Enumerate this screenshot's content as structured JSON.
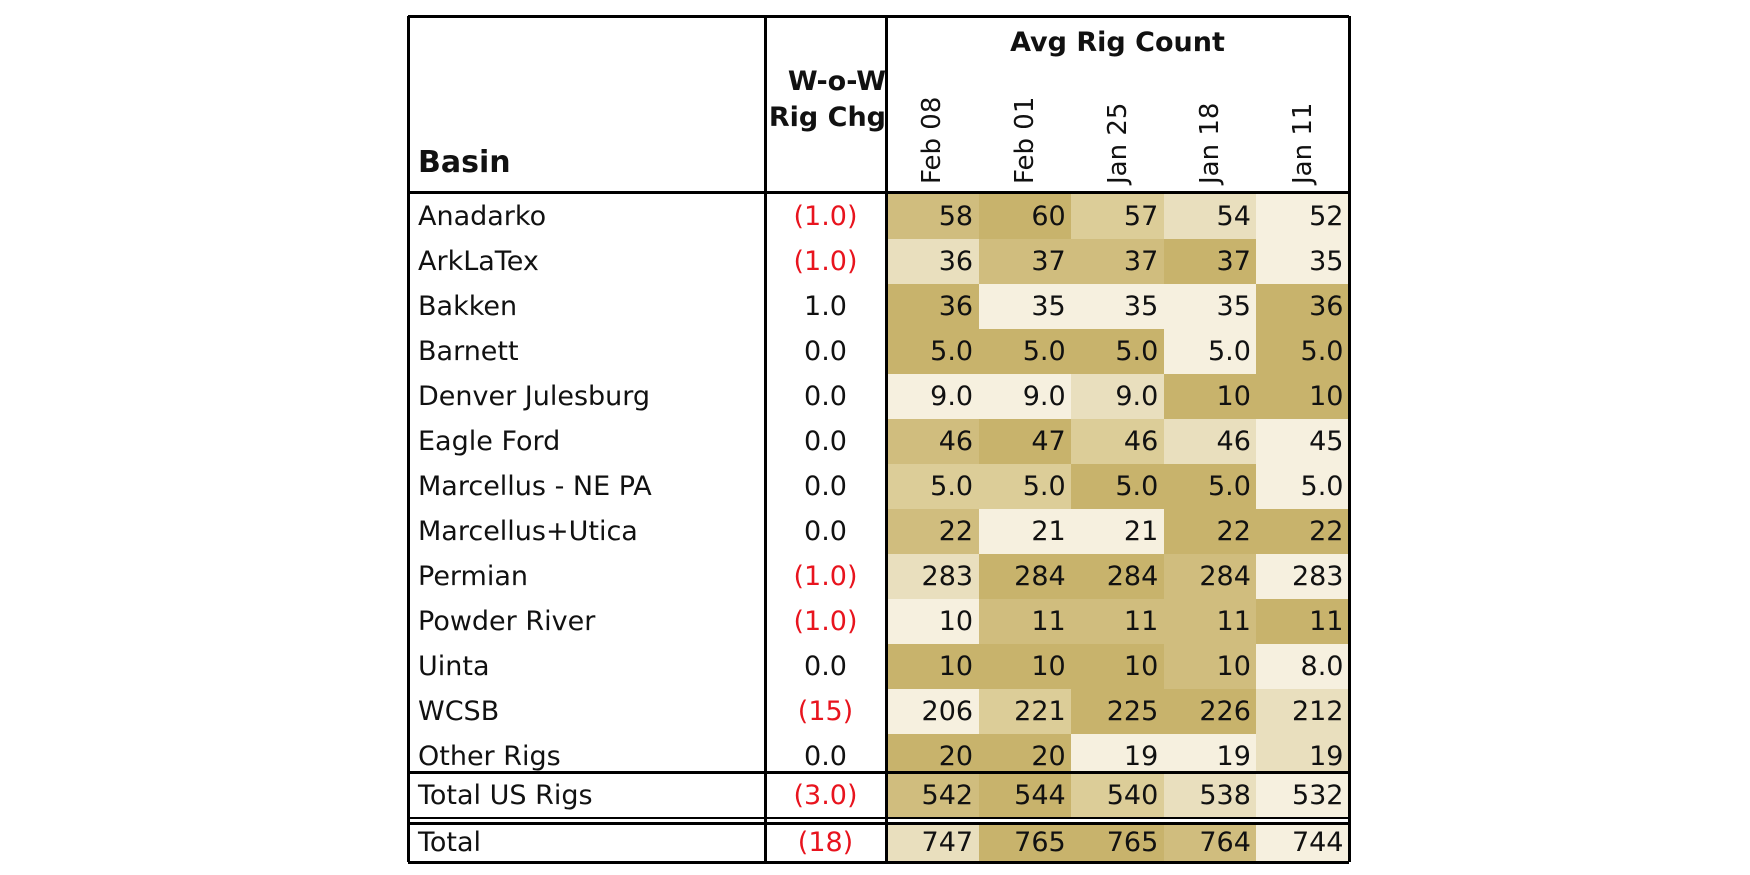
{
  "chart_data": {
    "type": "table",
    "title": "Avg Rig Count",
    "columns": {
      "basin": "Basin",
      "change": [
        "W-o-W",
        "Rig Chg"
      ],
      "dates": [
        "Feb 08",
        "Feb 01",
        "Jan 25",
        "Jan 18",
        "Jan 11"
      ]
    },
    "rows": [
      {
        "basin": "Anadarko",
        "change": "(1.0)",
        "negative": true,
        "values": [
          "58",
          "60",
          "57",
          "54",
          "52"
        ],
        "shades": [
          3,
          4,
          2,
          1,
          0
        ]
      },
      {
        "basin": "ArkLaTex",
        "change": "(1.0)",
        "negative": true,
        "values": [
          "36",
          "37",
          "37",
          "37",
          "35"
        ],
        "shades": [
          1,
          3,
          3,
          4,
          0
        ]
      },
      {
        "basin": "Bakken",
        "change": "1.0",
        "negative": false,
        "values": [
          "36",
          "35",
          "35",
          "35",
          "36"
        ],
        "shades": [
          4,
          0,
          0,
          0,
          4
        ]
      },
      {
        "basin": "Barnett",
        "change": "0.0",
        "negative": false,
        "values": [
          "5.0",
          "5.0",
          "5.0",
          "5.0",
          "5.0"
        ],
        "shades": [
          4,
          4,
          4,
          0,
          4
        ]
      },
      {
        "basin": "Denver Julesburg",
        "change": "0.0",
        "negative": false,
        "values": [
          "9.0",
          "9.0",
          "9.0",
          "10",
          "10"
        ],
        "shades": [
          0,
          0,
          1,
          4,
          4
        ]
      },
      {
        "basin": "Eagle Ford",
        "change": "0.0",
        "negative": false,
        "values": [
          "46",
          "47",
          "46",
          "46",
          "45"
        ],
        "shades": [
          3,
          4,
          2,
          1,
          0
        ]
      },
      {
        "basin": "Marcellus - NE PA",
        "change": "0.0",
        "negative": false,
        "values": [
          "5.0",
          "5.0",
          "5.0",
          "5.0",
          "5.0"
        ],
        "shades": [
          2,
          2,
          4,
          4,
          0
        ]
      },
      {
        "basin": "Marcellus+Utica",
        "change": "0.0",
        "negative": false,
        "values": [
          "22",
          "21",
          "21",
          "22",
          "22"
        ],
        "shades": [
          3,
          0,
          0,
          4,
          4
        ]
      },
      {
        "basin": "Permian",
        "change": "(1.0)",
        "negative": true,
        "values": [
          "283",
          "284",
          "284",
          "284",
          "283"
        ],
        "shades": [
          1,
          4,
          4,
          3,
          0
        ]
      },
      {
        "basin": "Powder River",
        "change": "(1.0)",
        "negative": true,
        "values": [
          "10",
          "11",
          "11",
          "11",
          "11"
        ],
        "shades": [
          0,
          3,
          3,
          3,
          4
        ]
      },
      {
        "basin": "Uinta",
        "change": "0.0",
        "negative": false,
        "values": [
          "10",
          "10",
          "10",
          "10",
          "8.0"
        ],
        "shades": [
          4,
          4,
          4,
          3,
          0
        ]
      },
      {
        "basin": "WCSB",
        "change": "(15)",
        "negative": true,
        "values": [
          "206",
          "221",
          "225",
          "226",
          "212"
        ],
        "shades": [
          0,
          2,
          4,
          4,
          1
        ]
      },
      {
        "basin": "Other Rigs",
        "change": "0.0",
        "negative": false,
        "values": [
          "20",
          "20",
          "19",
          "19",
          "19"
        ],
        "shades": [
          4,
          4,
          0,
          0,
          1
        ]
      }
    ],
    "subtotal": {
      "basin": "Total US Rigs",
      "change": "(3.0)",
      "negative": true,
      "values": [
        "542",
        "544",
        "540",
        "538",
        "532"
      ],
      "shades": [
        3,
        4,
        2,
        1,
        0
      ]
    },
    "total": {
      "basin": "Total",
      "change": "(18)",
      "negative": true,
      "values": [
        "747",
        "765",
        "765",
        "764",
        "744"
      ],
      "shades": [
        1,
        4,
        4,
        3,
        0
      ]
    },
    "shade_colors": [
      "#f6f0df",
      "#e9dfbe",
      "#dccd98",
      "#d0bd7e",
      "#c8b36c"
    ],
    "negative_color": "#e8141e"
  }
}
